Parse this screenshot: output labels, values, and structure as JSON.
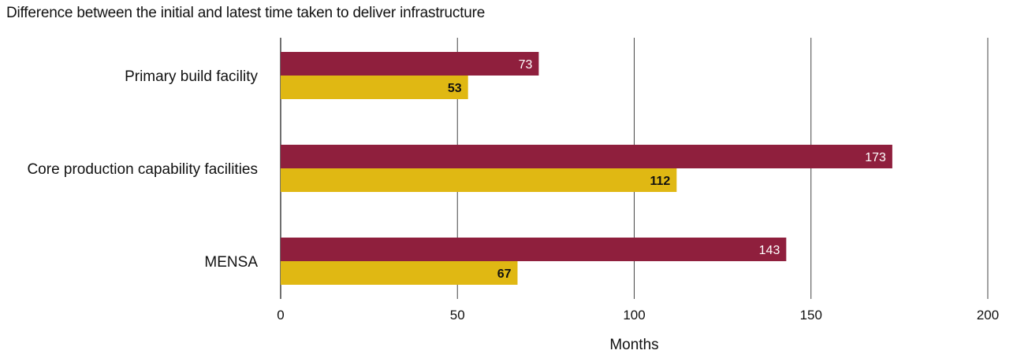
{
  "chart_data": {
    "type": "bar",
    "orientation": "horizontal",
    "title": "Difference between the initial and latest time taken to deliver infrastructure",
    "xlabel": "Months",
    "ylabel": "",
    "xlim": [
      0,
      200
    ],
    "x_ticks": [
      0,
      50,
      100,
      150,
      200
    ],
    "grid": true,
    "legend": "none",
    "categories": [
      "Primary build facility",
      "Core production capability facilities",
      "MENSA"
    ],
    "series": [
      {
        "values": [
          73,
          173,
          143
        ],
        "color": "#8f1f3d",
        "label_color": "#ffffff"
      },
      {
        "values": [
          53,
          112,
          67
        ],
        "color": "#e0b813",
        "label_color": "#111111"
      }
    ]
  }
}
